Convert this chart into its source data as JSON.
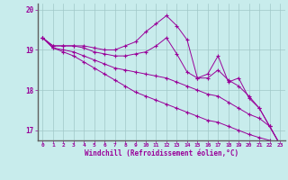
{
  "xlabel": "Windchill (Refroidissement éolien,°C)",
  "background_color": "#c8ecec",
  "grid_color": "#a0c8c8",
  "line_color": "#990099",
  "xlim": [
    -0.5,
    23.5
  ],
  "ylim": [
    16.75,
    20.15
  ],
  "yticks": [
    17,
    18,
    19,
    20
  ],
  "xticks": [
    0,
    1,
    2,
    3,
    4,
    5,
    6,
    7,
    8,
    9,
    10,
    11,
    12,
    13,
    14,
    15,
    16,
    17,
    18,
    19,
    20,
    21,
    22,
    23
  ],
  "line1_y": [
    19.3,
    19.1,
    19.1,
    19.1,
    19.1,
    19.05,
    19.0,
    19.0,
    19.1,
    19.2,
    19.45,
    19.65,
    19.85,
    19.6,
    19.25,
    18.3,
    18.4,
    18.85,
    18.2,
    18.3,
    17.8,
    17.55,
    17.1,
    16.65
  ],
  "line2_y": [
    19.3,
    19.1,
    19.1,
    19.1,
    19.05,
    18.95,
    18.9,
    18.85,
    18.85,
    18.9,
    18.95,
    19.1,
    19.3,
    18.9,
    18.45,
    18.3,
    18.3,
    18.5,
    18.25,
    18.1,
    17.85,
    17.55,
    17.1,
    16.65
  ],
  "line3_y": [
    19.3,
    19.05,
    19.0,
    18.95,
    18.85,
    18.75,
    18.65,
    18.55,
    18.5,
    18.45,
    18.4,
    18.35,
    18.3,
    18.2,
    18.1,
    18.0,
    17.9,
    17.85,
    17.7,
    17.55,
    17.4,
    17.3,
    17.1,
    16.65
  ],
  "line4_y": [
    19.3,
    19.05,
    18.95,
    18.85,
    18.7,
    18.55,
    18.4,
    18.25,
    18.1,
    17.95,
    17.85,
    17.75,
    17.65,
    17.55,
    17.45,
    17.35,
    17.25,
    17.2,
    17.1,
    17.0,
    16.9,
    16.82,
    16.75,
    16.65
  ]
}
